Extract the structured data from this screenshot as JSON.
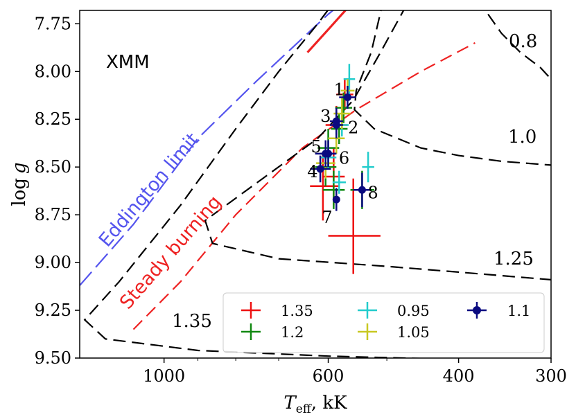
{
  "chart_data": {
    "type": "scatter",
    "title": "",
    "panel_label": "XMM",
    "xlabel": "T_eff, kK",
    "xlabel_main": "T",
    "xlabel_sub": "eff",
    "xlabel_unit": ", kK",
    "ylabel": "log g",
    "ylabel_log": "log",
    "ylabel_g": "g",
    "x_scale": "log",
    "x_inverted": true,
    "xlim": [
      1300,
      300
    ],
    "ylim": [
      9.5,
      7.68
    ],
    "x_ticks": [
      {
        "value": 1000,
        "label": "1000"
      },
      {
        "value": 600,
        "label": "600"
      },
      {
        "value": 400,
        "label": "400"
      },
      {
        "value": 300,
        "label": "300"
      }
    ],
    "x_minor_ticks": [
      900,
      800,
      700,
      500
    ],
    "y_ticks": [
      {
        "value": 7.75,
        "label": "7.75"
      },
      {
        "value": 8.0,
        "label": "8.00"
      },
      {
        "value": 8.25,
        "label": "8.25"
      },
      {
        "value": 8.5,
        "label": "8.50"
      },
      {
        "value": 8.75,
        "label": "8.75"
      },
      {
        "value": 9.0,
        "label": "9.00"
      },
      {
        "value": 9.25,
        "label": "9.25"
      },
      {
        "value": 9.5,
        "label": "9.50"
      }
    ],
    "colors": {
      "1.35": "#ee1111",
      "1.2": "#118811",
      "0.95": "#22cccc",
      "1.05": "#c8c822",
      "1.1": "#0a0a80",
      "eddington": "#5555ee",
      "steady": "#ee2222",
      "contour": "#000000"
    },
    "legend": {
      "location": "lower-right",
      "entries": [
        {
          "label": "1.35",
          "key": "1.35",
          "marker": "plus"
        },
        {
          "label": "1.2",
          "key": "1.2",
          "marker": "plus"
        },
        {
          "label": "0.95",
          "key": "0.95",
          "marker": "plus"
        },
        {
          "label": "1.05",
          "key": "1.05",
          "marker": "plus"
        },
        {
          "label": "1.1",
          "key": "1.1",
          "marker": "dot"
        }
      ]
    },
    "series": [
      {
        "name": "1.35",
        "points": [
          {
            "x": 555,
            "y": 8.86,
            "xerr": [
              45,
              45
            ],
            "yerr": [
              0.3,
              0.2
            ]
          },
          {
            "x": 610,
            "y": 8.6,
            "xerr": [
              30,
              25
            ],
            "yerr": [
              0.18,
              0.18
            ]
          },
          {
            "x": 590,
            "y": 8.55,
            "xerr": [
              20,
              20
            ],
            "yerr": [
              0.15,
              0.15
            ]
          },
          {
            "x": 585,
            "y": 8.28,
            "xerr": [
              20,
              20
            ],
            "yerr": [
              0.1,
              0.1
            ]
          },
          {
            "x": 570,
            "y": 8.12,
            "xerr": [
              15,
              15
            ],
            "yerr": [
              0.08,
              0.08
            ]
          }
        ]
      },
      {
        "name": "1.2",
        "points": [
          {
            "x": 590,
            "y": 8.62,
            "xerr": [
              20,
              20
            ],
            "yerr": [
              0.1,
              0.1
            ]
          },
          {
            "x": 540,
            "y": 8.62,
            "xerr": [
              20,
              20
            ],
            "yerr": [
              0.1,
              0.1
            ]
          },
          {
            "x": 605,
            "y": 8.5,
            "xerr": [
              20,
              20
            ],
            "yerr": [
              0.1,
              0.1
            ]
          },
          {
            "x": 600,
            "y": 8.4,
            "xerr": [
              20,
              20
            ],
            "yerr": [
              0.1,
              0.1
            ]
          },
          {
            "x": 580,
            "y": 8.3,
            "xerr": [
              15,
              15
            ],
            "yerr": [
              0.08,
              0.08
            ]
          },
          {
            "x": 572,
            "y": 8.19,
            "xerr": [
              15,
              15
            ],
            "yerr": [
              0.08,
              0.08
            ]
          }
        ]
      },
      {
        "name": "0.95",
        "points": [
          {
            "x": 562,
            "y": 8.04,
            "xerr": [
              10,
              10
            ],
            "yerr": [
              0.08,
              0.08
            ]
          },
          {
            "x": 530,
            "y": 8.5,
            "xerr": [
              10,
              10
            ],
            "yerr": [
              0.08,
              0.08
            ]
          },
          {
            "x": 580,
            "y": 8.58,
            "xerr": [
              12,
              12
            ],
            "yerr": [
              0.06,
              0.06
            ]
          },
          {
            "x": 600,
            "y": 8.45,
            "xerr": [
              15,
              15
            ],
            "yerr": [
              0.06,
              0.06
            ]
          },
          {
            "x": 575,
            "y": 8.28,
            "xerr": [
              12,
              12
            ],
            "yerr": [
              0.06,
              0.06
            ]
          }
        ]
      },
      {
        "name": "1.05",
        "points": [
          {
            "x": 585,
            "y": 8.35,
            "xerr": [
              15,
              15
            ],
            "yerr": [
              0.08,
              0.08
            ]
          },
          {
            "x": 605,
            "y": 8.48,
            "xerr": [
              18,
              18
            ],
            "yerr": [
              0.08,
              0.08
            ]
          },
          {
            "x": 575,
            "y": 8.22,
            "xerr": [
              15,
              15
            ],
            "yerr": [
              0.08,
              0.08
            ]
          },
          {
            "x": 565,
            "y": 8.1,
            "xerr": [
              12,
              12
            ],
            "yerr": [
              0.06,
              0.06
            ]
          }
        ]
      },
      {
        "name": "1.1",
        "points": [
          {
            "id": "1",
            "x": 565,
            "y": 8.135,
            "xerr": [
              15,
              15
            ],
            "yerr": [
              0.06,
              0.06
            ]
          },
          {
            "id": "3",
            "x": 585,
            "y": 8.26,
            "xerr": [
              12,
              12
            ],
            "yerr": [
              0.07,
              0.07
            ]
          },
          {
            "id": "2",
            "x": 585,
            "y": 8.28,
            "xerr": [
              12,
              12
            ],
            "yerr": [
              0.07,
              0.07
            ]
          },
          {
            "id": "5",
            "x": 605,
            "y": 8.43,
            "xerr": [
              20,
              20
            ],
            "yerr": [
              0.07,
              0.07
            ]
          },
          {
            "id": "6",
            "x": 600,
            "y": 8.43,
            "xerr": [
              15,
              15
            ],
            "yerr": [
              0.07,
              0.07
            ]
          },
          {
            "id": "4",
            "x": 615,
            "y": 8.51,
            "xerr": [
              20,
              20
            ],
            "yerr": [
              0.07,
              0.07
            ]
          },
          {
            "id": "8",
            "x": 540,
            "y": 8.62,
            "xerr": [
              15,
              15
            ],
            "yerr": [
              0.09,
              0.09
            ]
          },
          {
            "id": "7",
            "x": 585,
            "y": 8.67,
            "xerr": [
              5,
              5
            ],
            "yerr": [
              0.06,
              0.06
            ]
          }
        ]
      }
    ],
    "point_labels": [
      {
        "text": "1",
        "x": 580,
        "y": 8.1
      },
      {
        "text": "3",
        "x": 605,
        "y": 8.24
      },
      {
        "text": "2",
        "x": 555,
        "y": 8.3
      },
      {
        "text": "5",
        "x": 623,
        "y": 8.4
      },
      {
        "text": "6",
        "x": 571,
        "y": 8.46
      },
      {
        "text": "4",
        "x": 630,
        "y": 8.53
      },
      {
        "text": "8",
        "x": 522,
        "y": 8.64
      },
      {
        "text": "7",
        "x": 602,
        "y": 8.77
      }
    ],
    "lines": [
      {
        "name": "eddington",
        "label": "Eddington limit",
        "style": "dashed",
        "points": [
          [
            1300,
            9.12
          ],
          [
            1100,
            8.8
          ],
          [
            900,
            8.35
          ],
          [
            750,
            8.05
          ],
          [
            600,
            7.7
          ],
          [
            570,
            7.63
          ]
        ]
      },
      {
        "name": "red-solid",
        "label": "",
        "style": "solid",
        "points": [
          [
            640,
            7.9
          ],
          [
            600,
            7.78
          ],
          [
            545,
            7.6
          ]
        ]
      },
      {
        "name": "steady",
        "label": "Steady burning",
        "style": "dashed",
        "points": [
          [
            1100,
            9.35
          ],
          [
            950,
            9.1
          ],
          [
            800,
            8.75
          ],
          [
            650,
            8.4
          ],
          [
            550,
            8.2
          ],
          [
            450,
            8.0
          ],
          [
            380,
            7.85
          ]
        ]
      },
      {
        "name": "contour-1.35",
        "label": "1.35",
        "style": "dashed",
        "points": [
          [
            580,
            7.6
          ],
          [
            620,
            7.75
          ],
          [
            700,
            8.0
          ],
          [
            800,
            8.3
          ],
          [
            950,
            8.7
          ],
          [
            1150,
            9.1
          ],
          [
            1280,
            9.3
          ],
          [
            1200,
            9.4
          ],
          [
            900,
            9.46
          ],
          [
            600,
            9.49
          ],
          [
            300,
            9.52
          ]
        ]
      },
      {
        "name": "contour-1.25",
        "label": "1.25",
        "style": "dashed",
        "points": [
          [
            470,
            7.65
          ],
          [
            510,
            7.9
          ],
          [
            555,
            8.15
          ],
          [
            620,
            8.35
          ],
          [
            760,
            8.6
          ],
          [
            880,
            8.78
          ],
          [
            860,
            8.9
          ],
          [
            700,
            8.98
          ],
          [
            500,
            9.02
          ],
          [
            400,
            9.05
          ],
          [
            300,
            9.09
          ]
        ]
      },
      {
        "name": "contour-1.0",
        "label": "1.0",
        "style": "dashed",
        "points": [
          [
            505,
            7.62
          ],
          [
            525,
            7.9
          ],
          [
            550,
            8.1
          ],
          [
            553,
            8.2
          ],
          [
            520,
            8.3
          ],
          [
            450,
            8.4
          ],
          [
            400,
            8.44
          ],
          [
            350,
            8.47
          ],
          [
            300,
            8.49
          ]
        ]
      },
      {
        "name": "contour-0.8",
        "label": "0.8",
        "style": "dashed",
        "points": [
          [
            365,
            7.7
          ],
          [
            350,
            7.8
          ],
          [
            330,
            7.9
          ],
          [
            310,
            7.98
          ],
          [
            300,
            8.04
          ]
        ]
      }
    ],
    "curve_labels": [
      {
        "text": "Eddington limit",
        "key": "eddington"
      },
      {
        "text": "Steady burning",
        "key": "steady"
      },
      {
        "text": "1.35",
        "key": "contour-1.35"
      },
      {
        "text": "1.25",
        "key": "contour-1.25"
      },
      {
        "text": "1.0",
        "key": "contour-1.0"
      },
      {
        "text": "0.8",
        "key": "contour-0.8"
      }
    ]
  }
}
